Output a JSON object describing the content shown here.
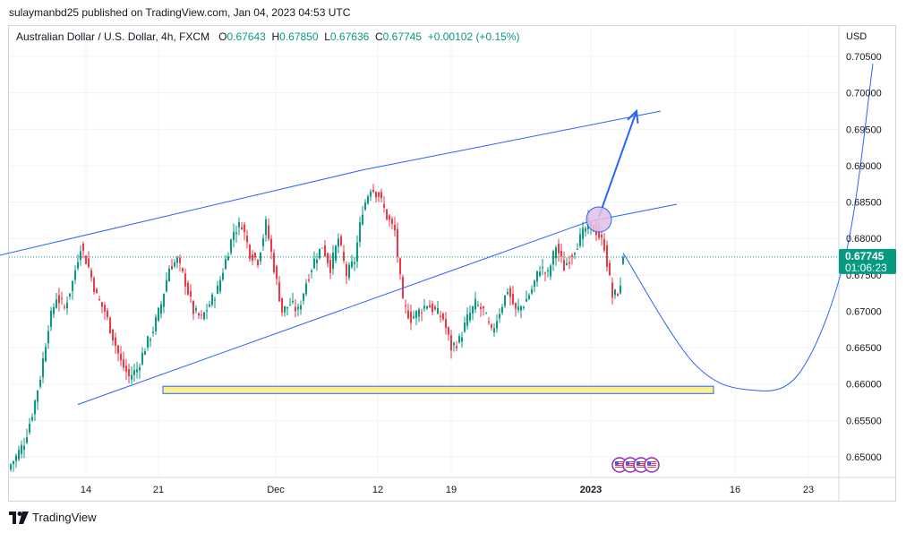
{
  "header": {
    "publisher_line": "sulaymanbd25 published on TradingView.com, Jan 04, 2023 04:53 UTC"
  },
  "legend": {
    "symbol": "Australian Dollar / U.S. Dollar, 4h, FXCM",
    "open_key": "O",
    "open": "0.67643",
    "high_key": "H",
    "high": "0.67850",
    "low_key": "L",
    "low": "0.67636",
    "close_key": "C",
    "close": "0.67745",
    "change": "+0.00102 (+0.15%)"
  },
  "price_axis": {
    "currency": "USD",
    "ticks": [
      "0.70500",
      "0.70000",
      "0.69500",
      "0.69000",
      "0.68500",
      "0.68000",
      "0.67500",
      "0.67000",
      "0.66500",
      "0.66000",
      "0.65500",
      "0.65000"
    ],
    "current_price": "0.67745",
    "countdown": "01:06:23"
  },
  "time_axis": {
    "ticks": [
      "14",
      "21",
      "Dec",
      "12",
      "19",
      "2023",
      "16",
      "23"
    ]
  },
  "brand": {
    "name": "TradingView"
  },
  "colors": {
    "up": "#089981",
    "down": "#f23645",
    "drawing": "#2962ff",
    "zone_fill": "#fbef8f",
    "marker": "#e1bee7"
  },
  "chart_data": {
    "type": "candlestick",
    "title": "Australian Dollar / U.S. Dollar, 4h, FXCM",
    "ylabel": "USD",
    "ylim": [
      0.6455,
      0.708
    ],
    "x_ticks": [
      "14",
      "21",
      "Dec",
      "12",
      "19",
      "2023",
      "16",
      "23"
    ],
    "last_close": 0.67745,
    "anchors": [
      [
        0,
        0.649
      ],
      [
        2,
        0.65
      ],
      [
        5,
        0.652
      ],
      [
        8,
        0.656
      ],
      [
        11,
        0.661
      ],
      [
        14,
        0.668
      ],
      [
        17,
        0.672
      ],
      [
        20,
        0.6705
      ],
      [
        23,
        0.674
      ],
      [
        26,
        0.679
      ],
      [
        29,
        0.676
      ],
      [
        32,
        0.672
      ],
      [
        35,
        0.67
      ],
      [
        38,
        0.6665
      ],
      [
        41,
        0.663
      ],
      [
        44,
        0.661
      ],
      [
        47,
        0.662
      ],
      [
        50,
        0.665
      ],
      [
        53,
        0.6675
      ],
      [
        56,
        0.671
      ],
      [
        59,
        0.676
      ],
      [
        62,
        0.677
      ],
      [
        65,
        0.674
      ],
      [
        68,
        0.67
      ],
      [
        71,
        0.669
      ],
      [
        74,
        0.671
      ],
      [
        77,
        0.673
      ],
      [
        80,
        0.677
      ],
      [
        83,
        0.681
      ],
      [
        86,
        0.682
      ],
      [
        89,
        0.678
      ],
      [
        92,
        0.677
      ],
      [
        95,
        0.682
      ],
      [
        98,
        0.676
      ],
      [
        101,
        0.67
      ],
      [
        104,
        0.671
      ],
      [
        107,
        0.67
      ],
      [
        110,
        0.674
      ],
      [
        113,
        0.677
      ],
      [
        116,
        0.679
      ],
      [
        119,
        0.676
      ],
      [
        122,
        0.68
      ],
      [
        125,
        0.675
      ],
      [
        128,
        0.677
      ],
      [
        131,
        0.684
      ],
      [
        134,
        0.687
      ],
      [
        137,
        0.686
      ],
      [
        140,
        0.683
      ],
      [
        143,
        0.681
      ],
      [
        146,
        0.671
      ],
      [
        149,
        0.669
      ],
      [
        152,
        0.67
      ],
      [
        155,
        0.671
      ],
      [
        158,
        0.67
      ],
      [
        161,
        0.669
      ],
      [
        164,
        0.665
      ],
      [
        167,
        0.666
      ],
      [
        170,
        0.669
      ],
      [
        173,
        0.671
      ],
      [
        176,
        0.67
      ],
      [
        179,
        0.667
      ],
      [
        182,
        0.67
      ],
      [
        185,
        0.673
      ],
      [
        188,
        0.67
      ],
      [
        191,
        0.671
      ],
      [
        194,
        0.673
      ],
      [
        197,
        0.676
      ],
      [
        200,
        0.675
      ],
      [
        203,
        0.679
      ],
      [
        206,
        0.676
      ],
      [
        209,
        0.678
      ],
      [
        212,
        0.68
      ],
      [
        215,
        0.682
      ],
      [
        218,
        0.681
      ],
      [
        221,
        0.679
      ],
      [
        224,
        0.672
      ],
      [
        227,
        0.673
      ],
      [
        228,
        0.67745
      ]
    ],
    "horizontal_price_line": 0.67745,
    "support_zone": {
      "y_low": 0.6587,
      "y_high": 0.6597
    },
    "drawings": {
      "upper_channel_line": [
        [
          -11,
          0.6771
        ],
        [
          131,
          0.6894
        ],
        [
          242,
          0.6975
        ]
      ],
      "lower_channel_line": [
        [
          25,
          0.6572
        ],
        [
          215,
          0.6823
        ],
        [
          248,
          0.6847
        ]
      ],
      "arrow_up": [
        [
          219,
          0.683
        ],
        [
          233,
          0.6975
        ]
      ],
      "curve_projection": [
        [
          228,
          0.678
        ],
        [
          254,
          0.663
        ],
        [
          275,
          0.6592
        ],
        [
          294,
          0.6617
        ],
        [
          311,
          0.678
        ],
        [
          321,
          0.704
        ]
      ],
      "circle_marker": [
        219,
        0.6826
      ]
    },
    "events": [
      {
        "type": "event-marker",
        "label": "US"
      },
      {
        "type": "event-marker",
        "label": "US"
      },
      {
        "type": "event-marker",
        "label": "US"
      },
      {
        "type": "event-marker",
        "label": "US"
      }
    ]
  }
}
